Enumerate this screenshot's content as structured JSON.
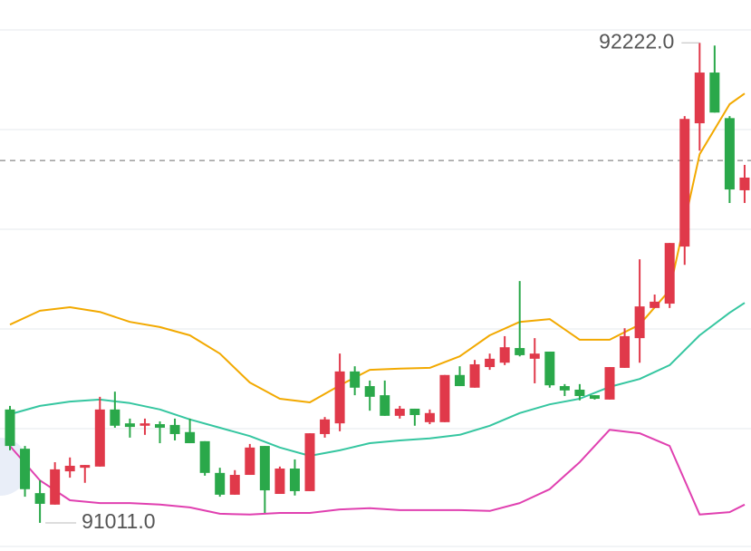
{
  "chart_data": {
    "type": "candlestick",
    "ylim": [
      90940,
      92330
    ],
    "up_color": "#e0394a",
    "down_color": "#2aa84a",
    "open": [
      91297,
      91198,
      91086,
      91057,
      91141,
      91150,
      91153,
      91297,
      91262,
      91256,
      91260,
      91258,
      91240,
      91217,
      91137,
      91082,
      91132,
      91205,
      91084,
      91148,
      91091,
      91235,
      91262,
      91393,
      91356,
      91333,
      91281,
      91299,
      91265,
      91265,
      91384,
      91352,
      91404,
      91415,
      91452,
      91425,
      91443,
      91356,
      91347,
      91333,
      91322,
      91402,
      91477,
      91553,
      91564,
      91708,
      92019,
      92147,
      92032,
      91850
    ],
    "high": [
      91306,
      91205,
      91118,
      91164,
      91176,
      91157,
      91329,
      91342,
      91274,
      91274,
      91267,
      91274,
      91274,
      91217,
      91150,
      91144,
      91210,
      91205,
      91153,
      91171,
      91237,
      91278,
      91438,
      91406,
      91370,
      91370,
      91306,
      91299,
      91297,
      91384,
      91406,
      91422,
      91438,
      91482,
      91621,
      91477,
      91443,
      91361,
      91361,
      91333,
      91404,
      91502,
      91676,
      91587,
      91717,
      92037,
      92222,
      92215,
      92037,
      91914
    ],
    "low": [
      91194,
      91077,
      91011,
      91057,
      91125,
      91112,
      91153,
      91251,
      91226,
      91233,
      91212,
      91219,
      91212,
      91130,
      91077,
      91082,
      91132,
      91036,
      91084,
      91080,
      91091,
      91226,
      91242,
      91333,
      91294,
      91281,
      91274,
      91256,
      91260,
      91265,
      91356,
      91352,
      91397,
      91409,
      91431,
      91363,
      91352,
      91331,
      91320,
      91322,
      91322,
      91402,
      91415,
      91553,
      91553,
      91662,
      91950,
      92046,
      91818,
      91818
    ],
    "close": [
      91205,
      91096,
      91059,
      91146,
      91155,
      91157,
      91297,
      91256,
      91253,
      91262,
      91251,
      91235,
      91212,
      91137,
      91082,
      91132,
      91201,
      91093,
      91148,
      91091,
      91237,
      91272,
      91393,
      91352,
      91329,
      91281,
      91299,
      91283,
      91288,
      91384,
      91356,
      91411,
      91425,
      91454,
      91434,
      91438,
      91358,
      91345,
      91331,
      91324,
      91404,
      91482,
      91557,
      91569,
      91717,
      92030,
      92147,
      92046,
      91852,
      91882
    ],
    "lines": [
      {
        "color": "#f2a900",
        "x": [
          0,
          2,
          4,
          6,
          8,
          10,
          12,
          14,
          16,
          18,
          20,
          22,
          24,
          26,
          28,
          30,
          32,
          34,
          36,
          38,
          40,
          42,
          44,
          46,
          48,
          49
        ],
        "values": [
          91511,
          91546,
          91555,
          91543,
          91518,
          91505,
          91484,
          91438,
          91365,
          91324,
          91315,
          91358,
          91397,
          91400,
          91402,
          91431,
          91484,
          91518,
          91525,
          91473,
          91473,
          91511,
          91598,
          91941,
          92067,
          92094
        ]
      },
      {
        "color": "#35c6a0",
        "x": [
          0,
          2,
          4,
          6,
          8,
          10,
          12,
          14,
          16,
          18,
          20,
          22,
          24,
          26,
          28,
          30,
          32,
          34,
          36,
          38,
          40,
          42,
          44,
          46,
          48,
          49
        ],
        "values": [
          91285,
          91306,
          91317,
          91322,
          91313,
          91297,
          91272,
          91251,
          91230,
          91201,
          91180,
          91194,
          91212,
          91219,
          91224,
          91233,
          91256,
          91288,
          91310,
          91324,
          91354,
          91374,
          91409,
          91484,
          91541,
          91566
        ]
      },
      {
        "color": "#e040b0",
        "x": [
          0,
          2,
          4,
          6,
          8,
          10,
          12,
          14,
          16,
          18,
          20,
          22,
          24,
          26,
          28,
          30,
          32,
          34,
          36,
          38,
          40,
          42,
          44,
          46,
          48,
          49
        ],
        "values": [
          91205,
          91118,
          91068,
          91061,
          91061,
          91057,
          91050,
          91034,
          91032,
          91036,
          91036,
          91045,
          91048,
          91043,
          91043,
          91043,
          91041,
          91061,
          91096,
          91164,
          91246,
          91237,
          91205,
          91032,
          91038,
          91057
        ]
      }
    ],
    "price_line": 91925,
    "annotations": [
      {
        "value": 92222,
        "label": "92222.0"
      },
      {
        "value": 91011,
        "label": "91011.0"
      }
    ]
  }
}
